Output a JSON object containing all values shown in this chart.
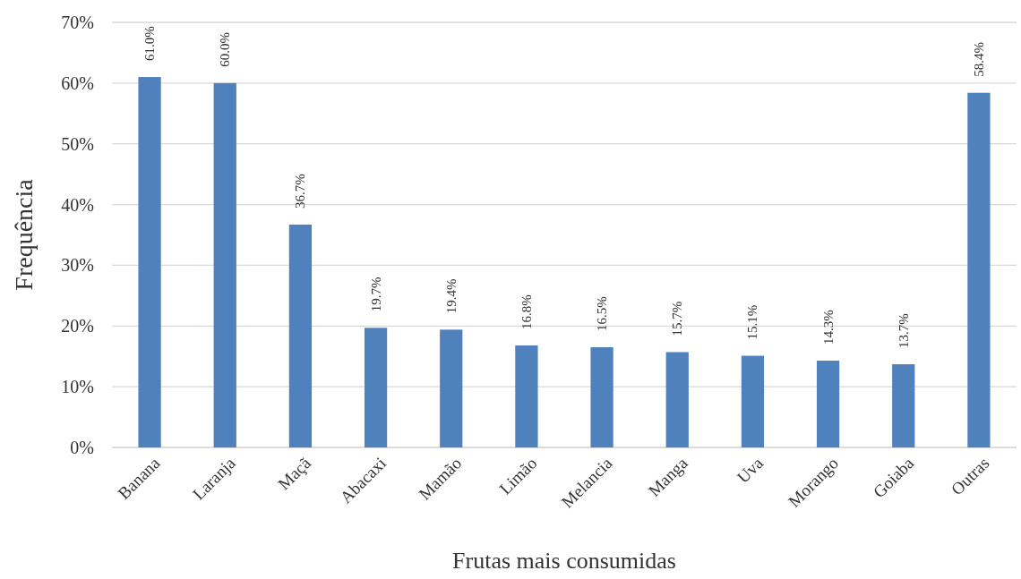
{
  "chart_data": {
    "type": "bar",
    "xlabel": "Frutas mais consumidas",
    "ylabel": "Frequência",
    "categories": [
      "Banana",
      "Laranja",
      "Maçã",
      "Abacaxi",
      "Mamão",
      "Limão",
      "Melancia",
      "Manga",
      "Uva",
      "Morango",
      "Goiaba",
      "Outras"
    ],
    "values": [
      61.0,
      60.0,
      36.7,
      19.7,
      19.4,
      16.8,
      16.5,
      15.7,
      15.1,
      14.3,
      13.7,
      58.4
    ],
    "value_labels": [
      "61.0%",
      "60.0%",
      "36.7%",
      "19.7%",
      "19.4%",
      "16.8%",
      "16.5%",
      "15.7%",
      "15.1%",
      "14.3%",
      "13.7%",
      "58.4%"
    ],
    "color": "#4f81bd",
    "ylim": [
      0,
      70
    ],
    "yticks": [
      {
        "value": 0,
        "label": "0%"
      },
      {
        "value": 10,
        "label": "10%"
      },
      {
        "value": 20,
        "label": "20%"
      },
      {
        "value": 30,
        "label": "30%"
      },
      {
        "value": 40,
        "label": "40%"
      },
      {
        "value": 50,
        "label": "50%"
      },
      {
        "value": 60,
        "label": "60%"
      },
      {
        "value": 70,
        "label": "70%"
      }
    ],
    "grid": "y"
  }
}
